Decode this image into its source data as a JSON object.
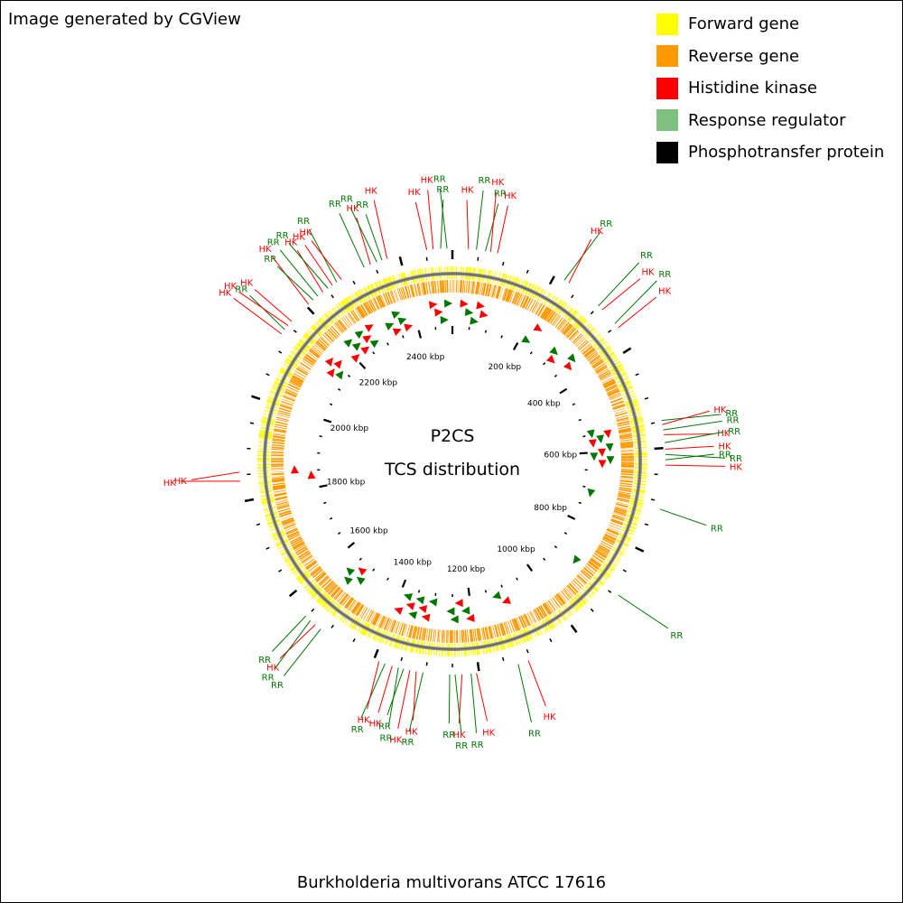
{
  "header": {
    "credit": "Image generated by CGView"
  },
  "legend": [
    {
      "label": "Forward gene",
      "color": "#ffff00"
    },
    {
      "label": "Reverse gene",
      "color": "#ff9900"
    },
    {
      "label": "Histidine kinase",
      "color": "#ff0000"
    },
    {
      "label": "Response regulator",
      "color": "#7fbf7f"
    },
    {
      "label": "Phosphotransfer protein",
      "color": "#000000"
    }
  ],
  "map": {
    "center_title": "P2CS",
    "center_subtitle": "TCS distribution",
    "genome_length_kbp": 2500,
    "tick_labels": [
      "200 kbp",
      "400 kbp",
      "600 kbp",
      "800 kbp",
      "1000 kbp",
      "1200 kbp",
      "1400 kbp",
      "1600 kbp",
      "1800 kbp",
      "2000 kbp",
      "2200 kbp",
      "2400 kbp"
    ],
    "tick_values_kbp": [
      200,
      400,
      600,
      800,
      1000,
      1200,
      1400,
      1600,
      1800,
      2000,
      2200,
      2400
    ],
    "colors": {
      "hk": "#ff0000",
      "rr": "#007700",
      "backbone": "#808080"
    },
    "features": [
      {
        "kbp": 30,
        "type": "HK"
      },
      {
        "kbp": 45,
        "type": "RR"
      },
      {
        "kbp": 62,
        "type": "RR"
      },
      {
        "kbp": 72,
        "type": "HK"
      },
      {
        "kbp": 85,
        "type": "HK"
      },
      {
        "kbp": 220,
        "type": "RR"
      },
      {
        "kbp": 230,
        "type": "HK"
      },
      {
        "kbp": 300,
        "type": "RR"
      },
      {
        "kbp": 310,
        "type": "HK"
      },
      {
        "kbp": 345,
        "type": "RR"
      },
      {
        "kbp": 355,
        "type": "HK"
      },
      {
        "kbp": 548,
        "type": "RR"
      },
      {
        "kbp": 556,
        "type": "HK"
      },
      {
        "kbp": 566,
        "type": "RR"
      },
      {
        "kbp": 575,
        "type": "HK"
      },
      {
        "kbp": 590,
        "type": "RR"
      },
      {
        "kbp": 602,
        "type": "HK"
      },
      {
        "kbp": 612,
        "type": "RR"
      },
      {
        "kbp": 622,
        "type": "RR"
      },
      {
        "kbp": 632,
        "type": "HK"
      },
      {
        "kbp": 715,
        "type": "RR"
      },
      {
        "kbp": 895,
        "type": "RR"
      },
      {
        "kbp": 1105,
        "type": "HK"
      },
      {
        "kbp": 1125,
        "type": "RR"
      },
      {
        "kbp": 1205,
        "type": "HK"
      },
      {
        "kbp": 1215,
        "type": "RR"
      },
      {
        "kbp": 1232,
        "type": "HK"
      },
      {
        "kbp": 1245,
        "type": "RR"
      },
      {
        "kbp": 1255,
        "type": "RR"
      },
      {
        "kbp": 1305,
        "type": "RR"
      },
      {
        "kbp": 1318,
        "type": "HK"
      },
      {
        "kbp": 1330,
        "type": "HK"
      },
      {
        "kbp": 1342,
        "type": "RR"
      },
      {
        "kbp": 1352,
        "type": "RR"
      },
      {
        "kbp": 1364,
        "type": "HK"
      },
      {
        "kbp": 1378,
        "type": "RR"
      },
      {
        "kbp": 1390,
        "type": "HK"
      },
      {
        "kbp": 1515,
        "type": "RR"
      },
      {
        "kbp": 1528,
        "type": "HK"
      },
      {
        "kbp": 1540,
        "type": "RR"
      },
      {
        "kbp": 1552,
        "type": "RR"
      },
      {
        "kbp": 1838,
        "type": "HK"
      },
      {
        "kbp": 1855,
        "type": "HK"
      },
      {
        "kbp": 2130,
        "type": "HK"
      },
      {
        "kbp": 2140,
        "type": "RR"
      },
      {
        "kbp": 2150,
        "type": "HK"
      },
      {
        "kbp": 2160,
        "type": "HK"
      },
      {
        "kbp": 2205,
        "type": "HK"
      },
      {
        "kbp": 2217,
        "type": "RR"
      },
      {
        "kbp": 2228,
        "type": "RR"
      },
      {
        "kbp": 2240,
        "type": "HK"
      },
      {
        "kbp": 2252,
        "type": "RR"
      },
      {
        "kbp": 2262,
        "type": "HK"
      },
      {
        "kbp": 2272,
        "type": "RR"
      },
      {
        "kbp": 2282,
        "type": "HK"
      },
      {
        "kbp": 2330,
        "type": "RR"
      },
      {
        "kbp": 2343,
        "type": "HK"
      },
      {
        "kbp": 2356,
        "type": "RR"
      },
      {
        "kbp": 2366,
        "type": "RR"
      },
      {
        "kbp": 2376,
        "type": "HK"
      },
      {
        "kbp": 2452,
        "type": "HK"
      },
      {
        "kbp": 2464,
        "type": "HK"
      },
      {
        "kbp": 2478,
        "type": "RR"
      },
      {
        "kbp": 2490,
        "type": "RR"
      }
    ]
  },
  "footer": {
    "caption": "Burkholderia multivorans ATCC 17616"
  }
}
